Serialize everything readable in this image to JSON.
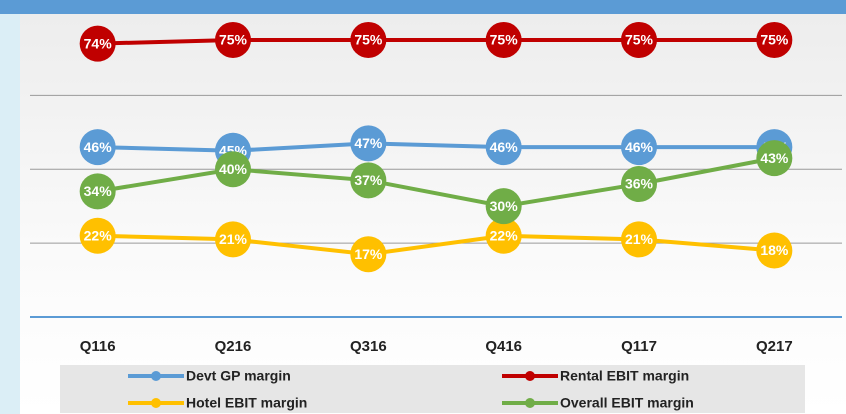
{
  "chart_data": {
    "type": "line",
    "categories": [
      "Q116",
      "Q216",
      "Q316",
      "Q416",
      "Q117",
      "Q217"
    ],
    "series": [
      {
        "name": "Devt GP margin",
        "color": "#5b9bd5",
        "values": [
          46,
          45,
          47,
          46,
          46,
          46
        ],
        "value_labels": [
          "46%",
          "45%",
          "47%",
          "46%",
          "46%",
          "46%"
        ]
      },
      {
        "name": "Rental EBIT margin",
        "color": "#c00000",
        "values": [
          74,
          75,
          75,
          75,
          75,
          75
        ],
        "value_labels": [
          "74%",
          "75%",
          "75%",
          "75%",
          "75%",
          "75%"
        ]
      },
      {
        "name": "Hotel EBIT margin",
        "color": "#ffc000",
        "values": [
          22,
          21,
          17,
          22,
          21,
          18
        ],
        "value_labels": [
          "22%",
          "21%",
          "17%",
          "22%",
          "21%",
          "18%"
        ]
      },
      {
        "name": "Overall EBIT margin",
        "color": "#70ad47",
        "values": [
          34,
          40,
          37,
          30,
          36,
          43
        ],
        "value_labels": [
          "34%",
          "40%",
          "37%",
          "30%",
          "36%",
          "43%"
        ]
      }
    ],
    "ylim": [
      0,
      85
    ],
    "yticks": [
      0,
      20,
      40,
      60
    ],
    "grid": true
  }
}
